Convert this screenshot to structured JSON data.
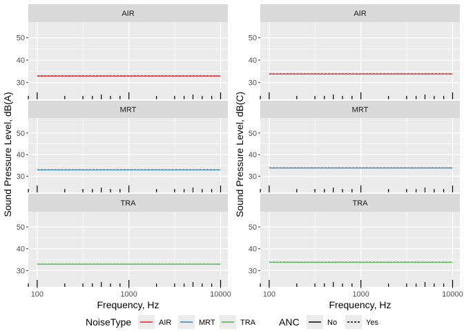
{
  "chart_data": [
    {
      "type": "line",
      "panel": "left",
      "ylabel": "Sound Pressure Level, dB(A)",
      "xlabel": "Frequency, Hz",
      "x_scale": "log10",
      "xlim": [
        80,
        12000
      ],
      "ylim": [
        22.5,
        57
      ],
      "x_ticks": [
        100,
        1000,
        10000
      ],
      "x_tick_labels": [
        "100",
        "1000",
        "10000"
      ],
      "y_ticks": [
        30,
        40,
        50
      ],
      "y_tick_labels": [
        "30",
        "40",
        "50"
      ],
      "rug_frequencies": [
        80,
        100,
        200,
        315,
        400,
        500,
        630,
        800,
        1000,
        2000,
        3150,
        4000,
        5000,
        6300,
        8000,
        10000
      ],
      "facets": [
        {
          "strip": "AIR",
          "series": [
            {
              "NoiseType": "AIR",
              "ANC": "No",
              "x": [
                100,
                10000
              ],
              "values": [
                32.9,
                32.9
              ]
            },
            {
              "NoiseType": "AIR",
              "ANC": "Yes",
              "x": [
                100,
                10000
              ],
              "values": [
                33.0,
                33.0
              ]
            }
          ]
        },
        {
          "strip": "MRT",
          "series": [
            {
              "NoiseType": "MRT",
              "ANC": "No",
              "x": [
                100,
                10000
              ],
              "values": [
                32.9,
                32.9
              ]
            },
            {
              "NoiseType": "MRT",
              "ANC": "Yes",
              "x": [
                100,
                10000
              ],
              "values": [
                33.0,
                33.0
              ]
            }
          ]
        },
        {
          "strip": "TRA",
          "series": [
            {
              "NoiseType": "TRA",
              "ANC": "No",
              "x": [
                100,
                10000
              ],
              "values": [
                32.9,
                32.9
              ]
            },
            {
              "NoiseType": "TRA",
              "ANC": "Yes",
              "x": [
                100,
                10000
              ],
              "values": [
                33.0,
                33.0
              ]
            }
          ]
        }
      ]
    },
    {
      "type": "line",
      "panel": "right",
      "ylabel": "Sound Pressure Level, dB(C)",
      "xlabel": "Frequency, Hz",
      "x_scale": "log10",
      "xlim": [
        80,
        12000
      ],
      "ylim": [
        22.5,
        57
      ],
      "x_ticks": [
        100,
        1000,
        10000
      ],
      "x_tick_labels": [
        "100",
        "1000",
        "10000"
      ],
      "y_ticks": [
        30,
        40,
        50
      ],
      "y_tick_labels": [
        "30",
        "40",
        "50"
      ],
      "rug_frequencies": [
        80,
        100,
        200,
        315,
        400,
        500,
        630,
        800,
        1000,
        2000,
        3150,
        4000,
        5000,
        6300,
        8000,
        10000
      ],
      "facets": [
        {
          "strip": "AIR",
          "series": [
            {
              "NoiseType": "AIR",
              "ANC": "No",
              "x": [
                100,
                10000
              ],
              "values": [
                33.8,
                33.8
              ]
            },
            {
              "NoiseType": "AIR",
              "ANC": "Yes",
              "x": [
                100,
                10000
              ],
              "values": [
                33.9,
                33.9
              ]
            }
          ]
        },
        {
          "strip": "MRT",
          "series": [
            {
              "NoiseType": "MRT",
              "ANC": "No",
              "x": [
                100,
                10000
              ],
              "values": [
                33.8,
                33.8
              ]
            },
            {
              "NoiseType": "MRT",
              "ANC": "Yes",
              "x": [
                100,
                10000
              ],
              "values": [
                33.9,
                33.9
              ]
            }
          ]
        },
        {
          "strip": "TRA",
          "series": [
            {
              "NoiseType": "TRA",
              "ANC": "No",
              "x": [
                100,
                10000
              ],
              "values": [
                33.8,
                33.8
              ]
            },
            {
              "NoiseType": "TRA",
              "ANC": "Yes",
              "x": [
                100,
                10000
              ],
              "values": [
                33.9,
                33.9
              ]
            }
          ]
        }
      ]
    }
  ],
  "legend": {
    "noise_title": "NoiseType",
    "noise_items": [
      {
        "label": "AIR",
        "color": "#e41a1c"
      },
      {
        "label": "MRT",
        "color": "#377eb8"
      },
      {
        "label": "TRA",
        "color": "#4daf4a"
      }
    ],
    "anc_title": "ANC",
    "anc_items": [
      {
        "label": "No",
        "linetype": "solid"
      },
      {
        "label": "Yes",
        "linetype": "dashed"
      }
    ]
  },
  "colors": {
    "panel_background": "#ebebeb",
    "strip_background": "#d9d9d9",
    "gridline": "#ffffff"
  }
}
